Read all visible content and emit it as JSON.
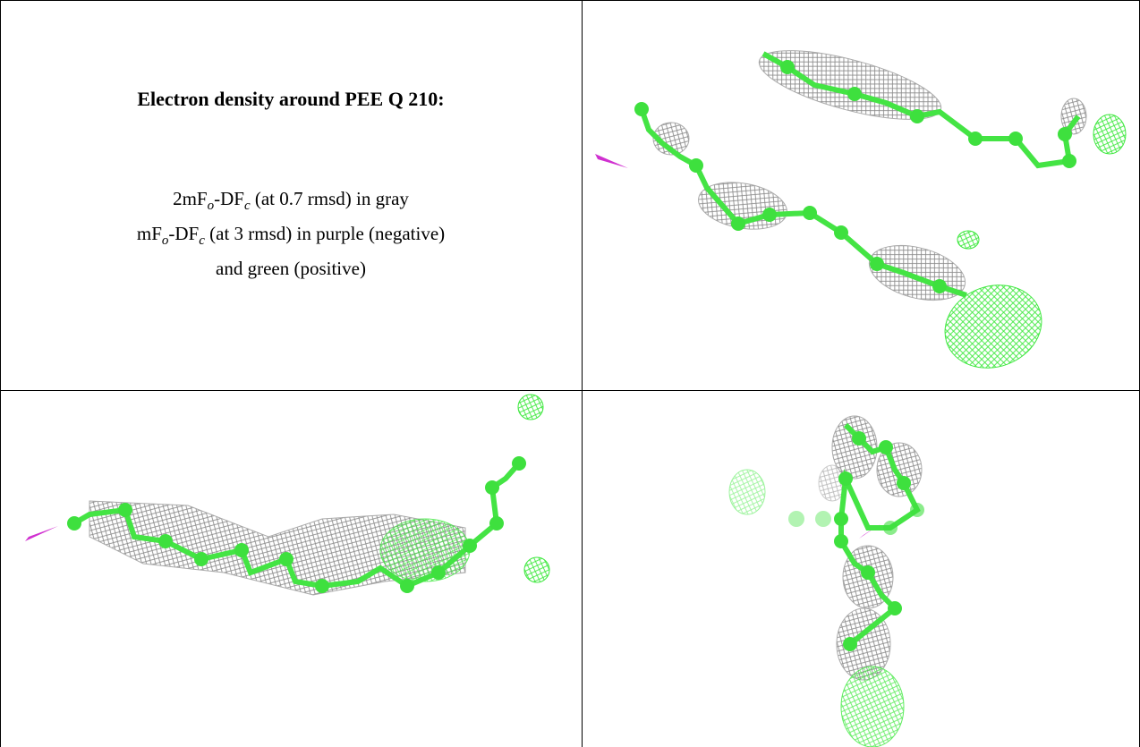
{
  "header": {
    "title": "Electron density around PEE Q 210:"
  },
  "description": [
    [
      "2mF",
      "o",
      "-DF",
      "c",
      " (at 0.7 rmsd) in gray"
    ],
    [
      "mF",
      "o",
      "-DF",
      "c",
      " (at 3 rmsd) in purple (negative)"
    ],
    [
      "and green (positive)"
    ]
  ]
}
